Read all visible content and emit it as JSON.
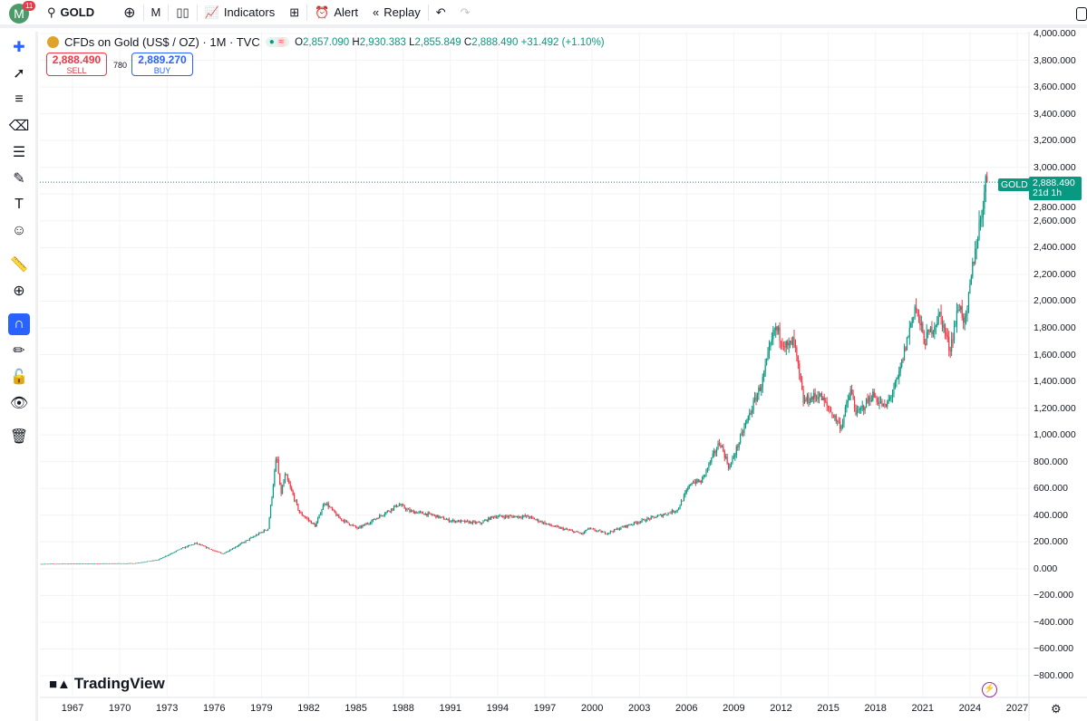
{
  "topbar": {
    "avatar_letter": "M",
    "notifications": "11",
    "symbol": "GOLD",
    "interval": "M",
    "indicators": "Indicators",
    "alert": "Alert",
    "replay": "Replay"
  },
  "legend": {
    "title": "CFDs on Gold (US$ / OZ) · 1M · TVC",
    "o_label": "O",
    "o": "2,857.090",
    "h_label": "H",
    "h": "2,930.383",
    "l_label": "L",
    "l": "2,855.849",
    "c_label": "C",
    "c": "2,888.490",
    "change": "+31.492 (+1.10%)"
  },
  "trade": {
    "sell_price": "2,888.490",
    "sell_label": "SELL",
    "spread": "780",
    "buy_price": "2,889.270",
    "buy_label": "BUY"
  },
  "price_tag": {
    "symbol": "GOLD",
    "price": "2,888.490",
    "countdown": "21d 1h"
  },
  "logo": "TradingView",
  "colors": {
    "up": "#089981",
    "down": "#f23645",
    "accent": "#2962ff"
  },
  "chart_data": {
    "type": "candlestick",
    "title": "CFDs on Gold (US$ / OZ) · 1M · TVC",
    "ylim": [
      -800,
      4000
    ],
    "y_ticks": [
      "4,000.000",
      "3,800.000",
      "3,600.000",
      "3,400.000",
      "3,200.000",
      "3,000.000",
      "2,800.000",
      "2,600.000",
      "2,400.000",
      "2,200.000",
      "2,000.000",
      "1,800.000",
      "1,600.000",
      "1,400.000",
      "1,200.000",
      "1,000.000",
      "800.000",
      "600.000",
      "400.000",
      "200.000",
      "0.000",
      "−200.000",
      "−400.000",
      "−600.000",
      "−800.000"
    ],
    "x_ticks": [
      "1967",
      "1970",
      "1973",
      "1976",
      "1979",
      "1982",
      "1985",
      "1988",
      "1991",
      "1994",
      "1997",
      "2000",
      "2003",
      "2006",
      "2009",
      "2012",
      "2015",
      "2018",
      "2021",
      "2024",
      "2027"
    ],
    "approx_price_path": [
      [
        1965,
        35
      ],
      [
        1971,
        40
      ],
      [
        1972.5,
        65
      ],
      [
        1974,
        150
      ],
      [
        1974.9,
        190
      ],
      [
        1976.6,
        110
      ],
      [
        1978,
        200
      ],
      [
        1979.5,
        300
      ],
      [
        1980.05,
        850
      ],
      [
        1980.3,
        550
      ],
      [
        1980.6,
        700
      ],
      [
        1981.5,
        420
      ],
      [
        1982.5,
        320
      ],
      [
        1983.1,
        500
      ],
      [
        1984,
        380
      ],
      [
        1985.2,
        300
      ],
      [
        1986,
        350
      ],
      [
        1987.8,
        480
      ],
      [
        1988.5,
        430
      ],
      [
        1990,
        400
      ],
      [
        1991,
        360
      ],
      [
        1993,
        340
      ],
      [
        1993.8,
        390
      ],
      [
        1996,
        390
      ],
      [
        1997.5,
        320
      ],
      [
        1999.5,
        260
      ],
      [
        1999.8,
        300
      ],
      [
        2001,
        265
      ],
      [
        2002,
        310
      ],
      [
        2003,
        350
      ],
      [
        2004.5,
        400
      ],
      [
        2005.5,
        440
      ],
      [
        2006.4,
        650
      ],
      [
        2007,
        650
      ],
      [
        2008.2,
        950
      ],
      [
        2008.8,
        750
      ],
      [
        2009.9,
        1100
      ],
      [
        2010.9,
        1400
      ],
      [
        2011.7,
        1800
      ],
      [
        2012.5,
        1650
      ],
      [
        2012.9,
        1700
      ],
      [
        2013.5,
        1250
      ],
      [
        2014.5,
        1300
      ],
      [
        2015.9,
        1060
      ],
      [
        2016.5,
        1330
      ],
      [
        2016.9,
        1150
      ],
      [
        2017.9,
        1300
      ],
      [
        2018.7,
        1200
      ],
      [
        2019.5,
        1410
      ],
      [
        2020.6,
        1970
      ],
      [
        2021.2,
        1700
      ],
      [
        2022.2,
        1900
      ],
      [
        2022.8,
        1640
      ],
      [
        2023.4,
        1980
      ],
      [
        2023.8,
        1820
      ],
      [
        2024.3,
        2300
      ],
      [
        2024.8,
        2650
      ],
      [
        2025.1,
        2888
      ]
    ],
    "last_price": 2888.49
  }
}
